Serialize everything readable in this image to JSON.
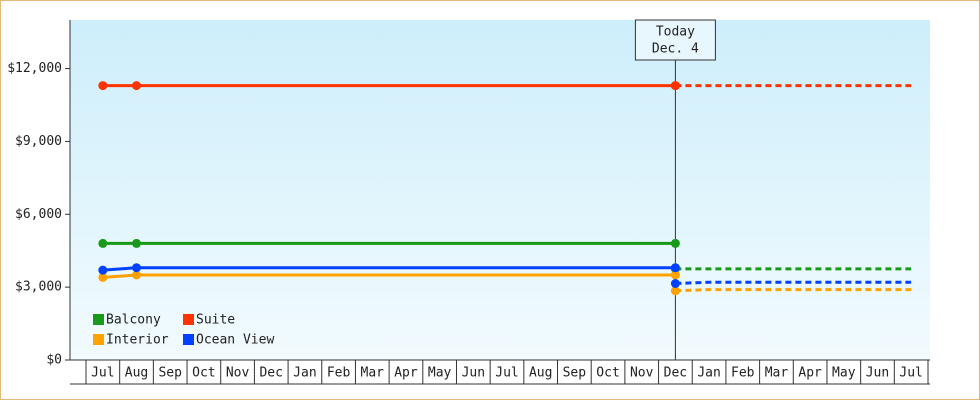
{
  "chart_data": {
    "type": "line",
    "categories": [
      "Jul",
      "Aug",
      "Sep",
      "Oct",
      "Nov",
      "Dec",
      "Jan",
      "Feb",
      "Mar",
      "Apr",
      "May",
      "Jun",
      "Jul",
      "Aug",
      "Sep",
      "Oct",
      "Nov",
      "Dec",
      "Jan",
      "Feb",
      "Mar",
      "Apr",
      "May",
      "Jun",
      "Jul"
    ],
    "series": [
      {
        "name": "Balcony",
        "color": "#18991a",
        "values": [
          4800,
          4800,
          4800,
          4800,
          4800,
          4800,
          4800,
          4800,
          4800,
          4800,
          4800,
          4800,
          4800,
          4800,
          4800,
          4800,
          4800,
          4800,
          null,
          null,
          null,
          null,
          null,
          null,
          null
        ],
        "forecast": [
          null,
          null,
          null,
          null,
          null,
          null,
          null,
          null,
          null,
          null,
          null,
          null,
          null,
          null,
          null,
          null,
          null,
          3750,
          3750,
          3750,
          3750,
          3750,
          3750,
          3750,
          3750
        ]
      },
      {
        "name": "Suite",
        "color": "#ff3300",
        "values": [
          11300,
          11300,
          11300,
          11300,
          11300,
          11300,
          11300,
          11300,
          11300,
          11300,
          11300,
          11300,
          11300,
          11300,
          11300,
          11300,
          11300,
          11300,
          null,
          null,
          null,
          null,
          null,
          null,
          null
        ],
        "forecast": [
          null,
          null,
          null,
          null,
          null,
          null,
          null,
          null,
          null,
          null,
          null,
          null,
          null,
          null,
          null,
          null,
          null,
          11300,
          11300,
          11300,
          11300,
          11300,
          11300,
          11300,
          11300
        ]
      },
      {
        "name": "Interior",
        "color": "#ffa200",
        "values": [
          3400,
          3500,
          3500,
          3500,
          3500,
          3500,
          3500,
          3500,
          3500,
          3500,
          3500,
          3500,
          3500,
          3500,
          3500,
          3500,
          3500,
          3500,
          null,
          null,
          null,
          null,
          null,
          null,
          null
        ],
        "forecast": [
          null,
          null,
          null,
          null,
          null,
          null,
          null,
          null,
          null,
          null,
          null,
          null,
          null,
          null,
          null,
          null,
          null,
          2850,
          2900,
          2900,
          2900,
          2900,
          2900,
          2900,
          2900
        ]
      },
      {
        "name": "Ocean View",
        "color": "#0040ff",
        "values": [
          3700,
          3800,
          3800,
          3800,
          3800,
          3800,
          3800,
          3800,
          3800,
          3800,
          3800,
          3800,
          3800,
          3800,
          3800,
          3800,
          3800,
          3800,
          null,
          null,
          null,
          null,
          null,
          null,
          null
        ],
        "forecast": [
          null,
          null,
          null,
          null,
          null,
          null,
          null,
          null,
          null,
          null,
          null,
          null,
          null,
          null,
          null,
          null,
          null,
          3150,
          3200,
          3200,
          3200,
          3200,
          3200,
          3200,
          3200
        ]
      }
    ],
    "annotation": {
      "lines": [
        "Today",
        "Dec. 4"
      ],
      "x": 17
    },
    "ylim": [
      0,
      14000
    ],
    "yticks": [
      {
        "value": 0,
        "label": "$0"
      },
      {
        "value": 3000,
        "label": "$3,000"
      },
      {
        "value": 6000,
        "label": "$6,000"
      },
      {
        "value": 9000,
        "label": "$9,000"
      },
      {
        "value": 12000,
        "label": "$12,000"
      }
    ],
    "legend": "lower-left"
  }
}
